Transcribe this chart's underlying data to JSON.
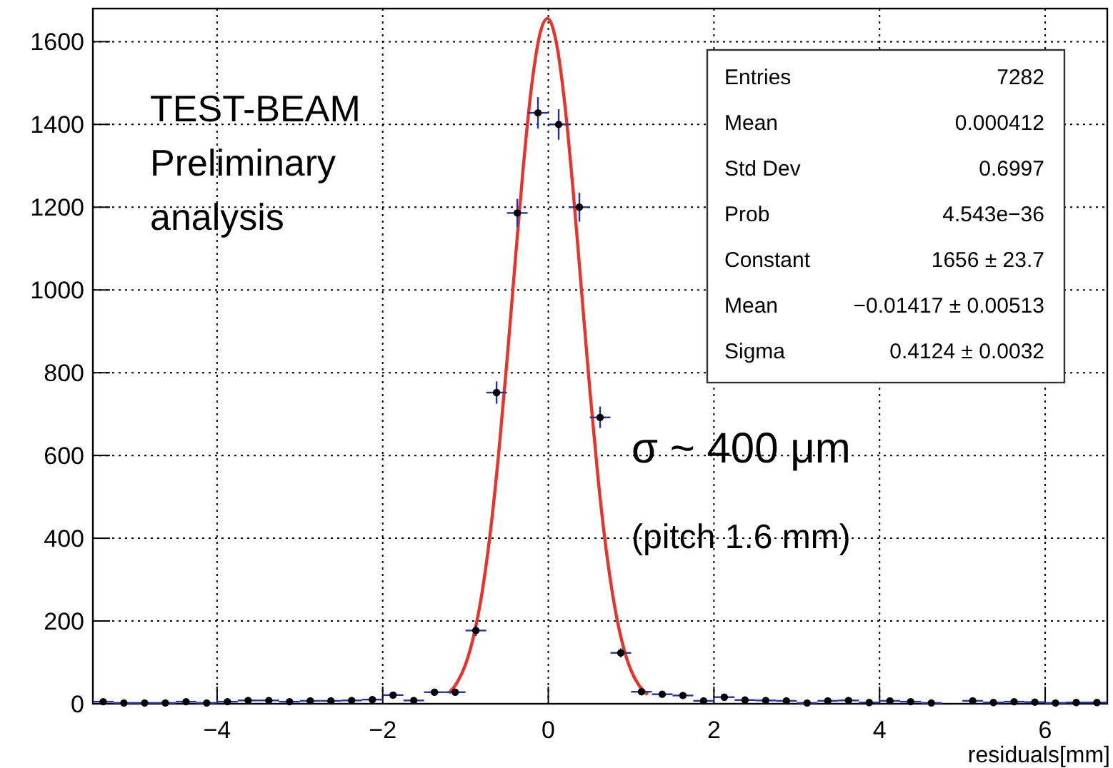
{
  "chart_data": {
    "type": "scatter",
    "xlabel": "residuals[mm]",
    "xlim": [
      -5.5,
      6.75
    ],
    "ylim": [
      0,
      1680
    ],
    "xticks": [
      -4,
      -2,
      0,
      2,
      4,
      6
    ],
    "yticks": [
      0,
      200,
      400,
      600,
      800,
      1000,
      1200,
      1400,
      1600
    ],
    "grid": true,
    "marker": "circle",
    "series": [
      {
        "color": "#000000",
        "x": [
          -5.375,
          -5.125,
          -4.875,
          -4.625,
          -4.375,
          -4.125,
          -3.875,
          -3.625,
          -3.375,
          -3.125,
          -2.875,
          -2.625,
          -2.375,
          -2.125,
          -1.875,
          -1.625,
          -1.375,
          -1.125,
          -0.875,
          -0.625,
          -0.375,
          -0.125,
          0.125,
          0.375,
          0.625,
          0.875,
          1.125,
          1.375,
          1.625,
          1.875,
          2.125,
          2.375,
          2.625,
          2.875,
          3.125,
          3.375,
          3.625,
          3.875,
          4.125,
          4.375,
          4.625,
          5.125,
          5.375,
          5.625,
          5.875,
          6.125,
          6.375,
          6.625
        ],
        "values": [
          5,
          2,
          2,
          2,
          5,
          2,
          5,
          8,
          8,
          5,
          7,
          7,
          8,
          10,
          21,
          8,
          28,
          28,
          177,
          752,
          1186,
          1428,
          1400,
          1200,
          692,
          123,
          29,
          23,
          20,
          7,
          16,
          9,
          8,
          7,
          2,
          7,
          8,
          3,
          7,
          5,
          2,
          7,
          3,
          5,
          4,
          2,
          3,
          3
        ],
        "errors": [
          2,
          1,
          1,
          1,
          2,
          1,
          2,
          3,
          3,
          2,
          3,
          3,
          3,
          3,
          5,
          3,
          5,
          5,
          13,
          27,
          34,
          38,
          37,
          35,
          26,
          11,
          5,
          5,
          4,
          3,
          4,
          3,
          3,
          3,
          1,
          3,
          3,
          2,
          3,
          2,
          1,
          3,
          2,
          2,
          2,
          1,
          2,
          2
        ],
        "xerrors": [
          0.125,
          0.125,
          0.125,
          0.125,
          0.125,
          0.125,
          0.125,
          0.125,
          0.125,
          0.125,
          0.125,
          0.125,
          0.125,
          0.125,
          0.125,
          0.125,
          0.125,
          0.125,
          0.125,
          0.125,
          0.125,
          0.125,
          0.125,
          0.125,
          0.125,
          0.125,
          0.125,
          0.125,
          0.125,
          0.125,
          0.125,
          0.125,
          0.125,
          0.125,
          0.125,
          0.125,
          0.125,
          0.125,
          0.125,
          0.125,
          0.125,
          0.125,
          0.125,
          0.125,
          0.125,
          0.125,
          0.125,
          0.125
        ]
      },
      {
        "type": "line",
        "color": "#e8332a",
        "marker": "none",
        "line_style": "solid",
        "x": [
          -1.2,
          -1.1,
          -1.0,
          -0.9,
          -0.8,
          -0.7,
          -0.6,
          -0.5,
          -0.4,
          -0.3,
          -0.2,
          -0.1,
          -0.01,
          0.1,
          0.2,
          0.3,
          0.4,
          0.5,
          0.6,
          0.7,
          0.8,
          0.9,
          1.0,
          1.1,
          1.2
        ],
        "values": [
          26,
          52,
          95,
          165,
          269,
          415,
          604,
          827,
          1069,
          1303,
          1496,
          1620,
          1656,
          1594,
          1447,
          1239,
          1000,
          761,
          546,
          370,
          236,
          142,
          80,
          43,
          22
        ]
      }
    ],
    "annotations": [
      "TEST-BEAM Preliminary analysis",
      "σ ~ 400 μm",
      "(pitch 1.6 mm)",
      "Entries",
      "7282",
      "Mean",
      "0.000412",
      "Std Dev",
      "0.6997",
      "Prob",
      "4.543e−36",
      "Constant",
      "1656 ± 23.7",
      "Mean",
      "−0.01417 ± 0.00513",
      "Sigma",
      "0.4124 ± 0.0032"
    ]
  }
}
